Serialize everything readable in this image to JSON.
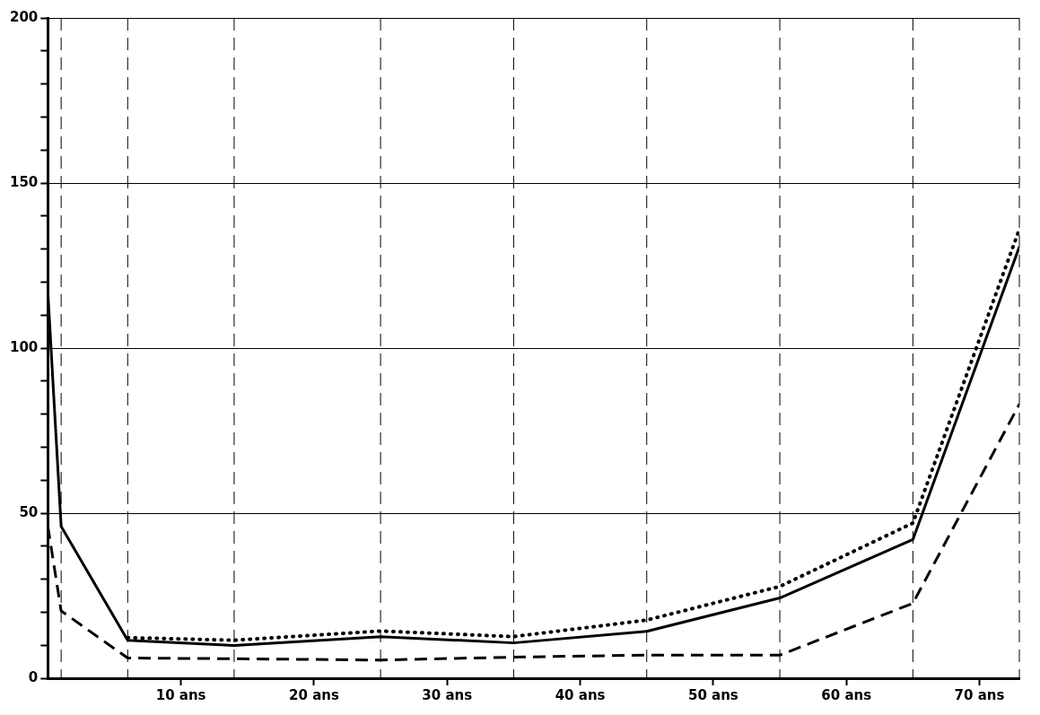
{
  "chart_data": {
    "type": "line",
    "x": [
      0,
      1,
      6,
      14,
      25,
      35,
      45,
      55,
      65,
      73
    ],
    "series": [
      {
        "color": "#000000",
        "line_style": "solid",
        "values": [
          117,
          46,
          11.5,
          9.9,
          12.6,
          10.7,
          14.2,
          24.3,
          42,
          130.7
        ]
      },
      {
        "color": "#000000",
        "line_style": "dotted",
        "values": [
          null,
          null,
          12.3,
          11.5,
          14.3,
          12.6,
          17.6,
          27.8,
          47,
          136
        ]
      },
      {
        "color": "#000000",
        "line_style": "dashed",
        "values": [
          46,
          20.4,
          6.1,
          5.9,
          5.5,
          6.4,
          7,
          7,
          22.7,
          83
        ]
      }
    ],
    "xlim": [
      0,
      73
    ],
    "xticks": [
      {
        "value": 10,
        "label": "10 ans"
      },
      {
        "value": 20,
        "label": "20 ans"
      },
      {
        "value": 30,
        "label": "30 ans"
      },
      {
        "value": 40,
        "label": "40 ans"
      },
      {
        "value": 50,
        "label": "50 ans"
      },
      {
        "value": 60,
        "label": "60 ans"
      },
      {
        "value": 70,
        "label": "70 ans"
      }
    ],
    "ylim": [
      0,
      200
    ],
    "yticks": [
      0,
      {
        "value": 10,
        "label": null
      },
      {
        "value": 20,
        "label": null
      },
      {
        "value": 30,
        "label": null
      },
      {
        "value": 40,
        "label": null
      },
      50,
      {
        "value": 60,
        "label": null
      },
      {
        "value": 70,
        "label": null
      },
      {
        "value": 80,
        "label": null
      },
      {
        "value": 90,
        "label": null
      },
      100,
      {
        "value": 110,
        "label": null
      },
      {
        "value": 120,
        "label": null
      },
      {
        "value": 130,
        "label": null
      },
      {
        "value": 140,
        "label": null
      },
      150,
      {
        "value": 160,
        "label": null
      },
      {
        "value": 170,
        "label": null
      },
      {
        "value": 180,
        "label": null
      },
      {
        "value": 190,
        "label": null
      },
      200
    ],
    "grid": "y",
    "legend": false,
    "marker": "none",
    "ref_lines": [
      {
        "axis": "x",
        "value": 1,
        "line_style": "dashed"
      },
      {
        "axis": "x",
        "value": 6,
        "line_style": "dashed"
      },
      {
        "axis": "x",
        "value": 14,
        "line_style": "dashed"
      },
      {
        "axis": "x",
        "value": 25,
        "line_style": "dashed"
      },
      {
        "axis": "x",
        "value": 35,
        "line_style": "dashed"
      },
      {
        "axis": "x",
        "value": 45,
        "line_style": "dashed"
      },
      {
        "axis": "x",
        "value": 55,
        "line_style": "dashed"
      },
      {
        "axis": "x",
        "value": 65,
        "line_style": "dashed"
      },
      {
        "axis": "x",
        "value": 73,
        "line_style": "dashed"
      }
    ]
  }
}
